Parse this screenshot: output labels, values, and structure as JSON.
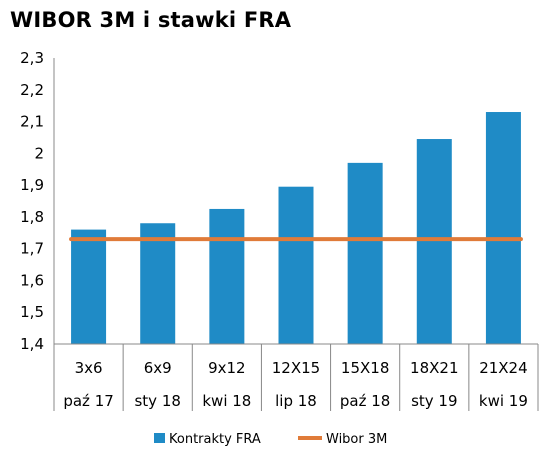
{
  "chart_data": {
    "type": "bar",
    "title": "WIBOR 3M i stawki FRA",
    "categories": [
      "3x6",
      "6x9",
      "9x12",
      "12X15",
      "15X18",
      "18X21",
      "21X24"
    ],
    "sub_categories": [
      "paź 17",
      "sty 18",
      "kwi 18",
      "lip 18",
      "paź 18",
      "sty 19",
      "kwi 19"
    ],
    "series": [
      {
        "name": "Kontrakty FRA",
        "type": "bar",
        "color": "#1f8bc6",
        "values": [
          1.76,
          1.78,
          1.825,
          1.895,
          1.97,
          2.045,
          2.13
        ]
      },
      {
        "name": "Wibor 3M",
        "type": "line",
        "color": "#e07b39",
        "values": [
          1.73,
          1.73,
          1.73,
          1.73,
          1.73,
          1.73,
          1.73
        ]
      }
    ],
    "ylim": [
      1.4,
      2.3
    ],
    "yticks": [
      "1,4",
      "1,5",
      "1,6",
      "1,7",
      "1,8",
      "1,9",
      "2",
      "2,1",
      "2,2",
      "2,3"
    ],
    "grid": false,
    "legend": "bottom"
  }
}
